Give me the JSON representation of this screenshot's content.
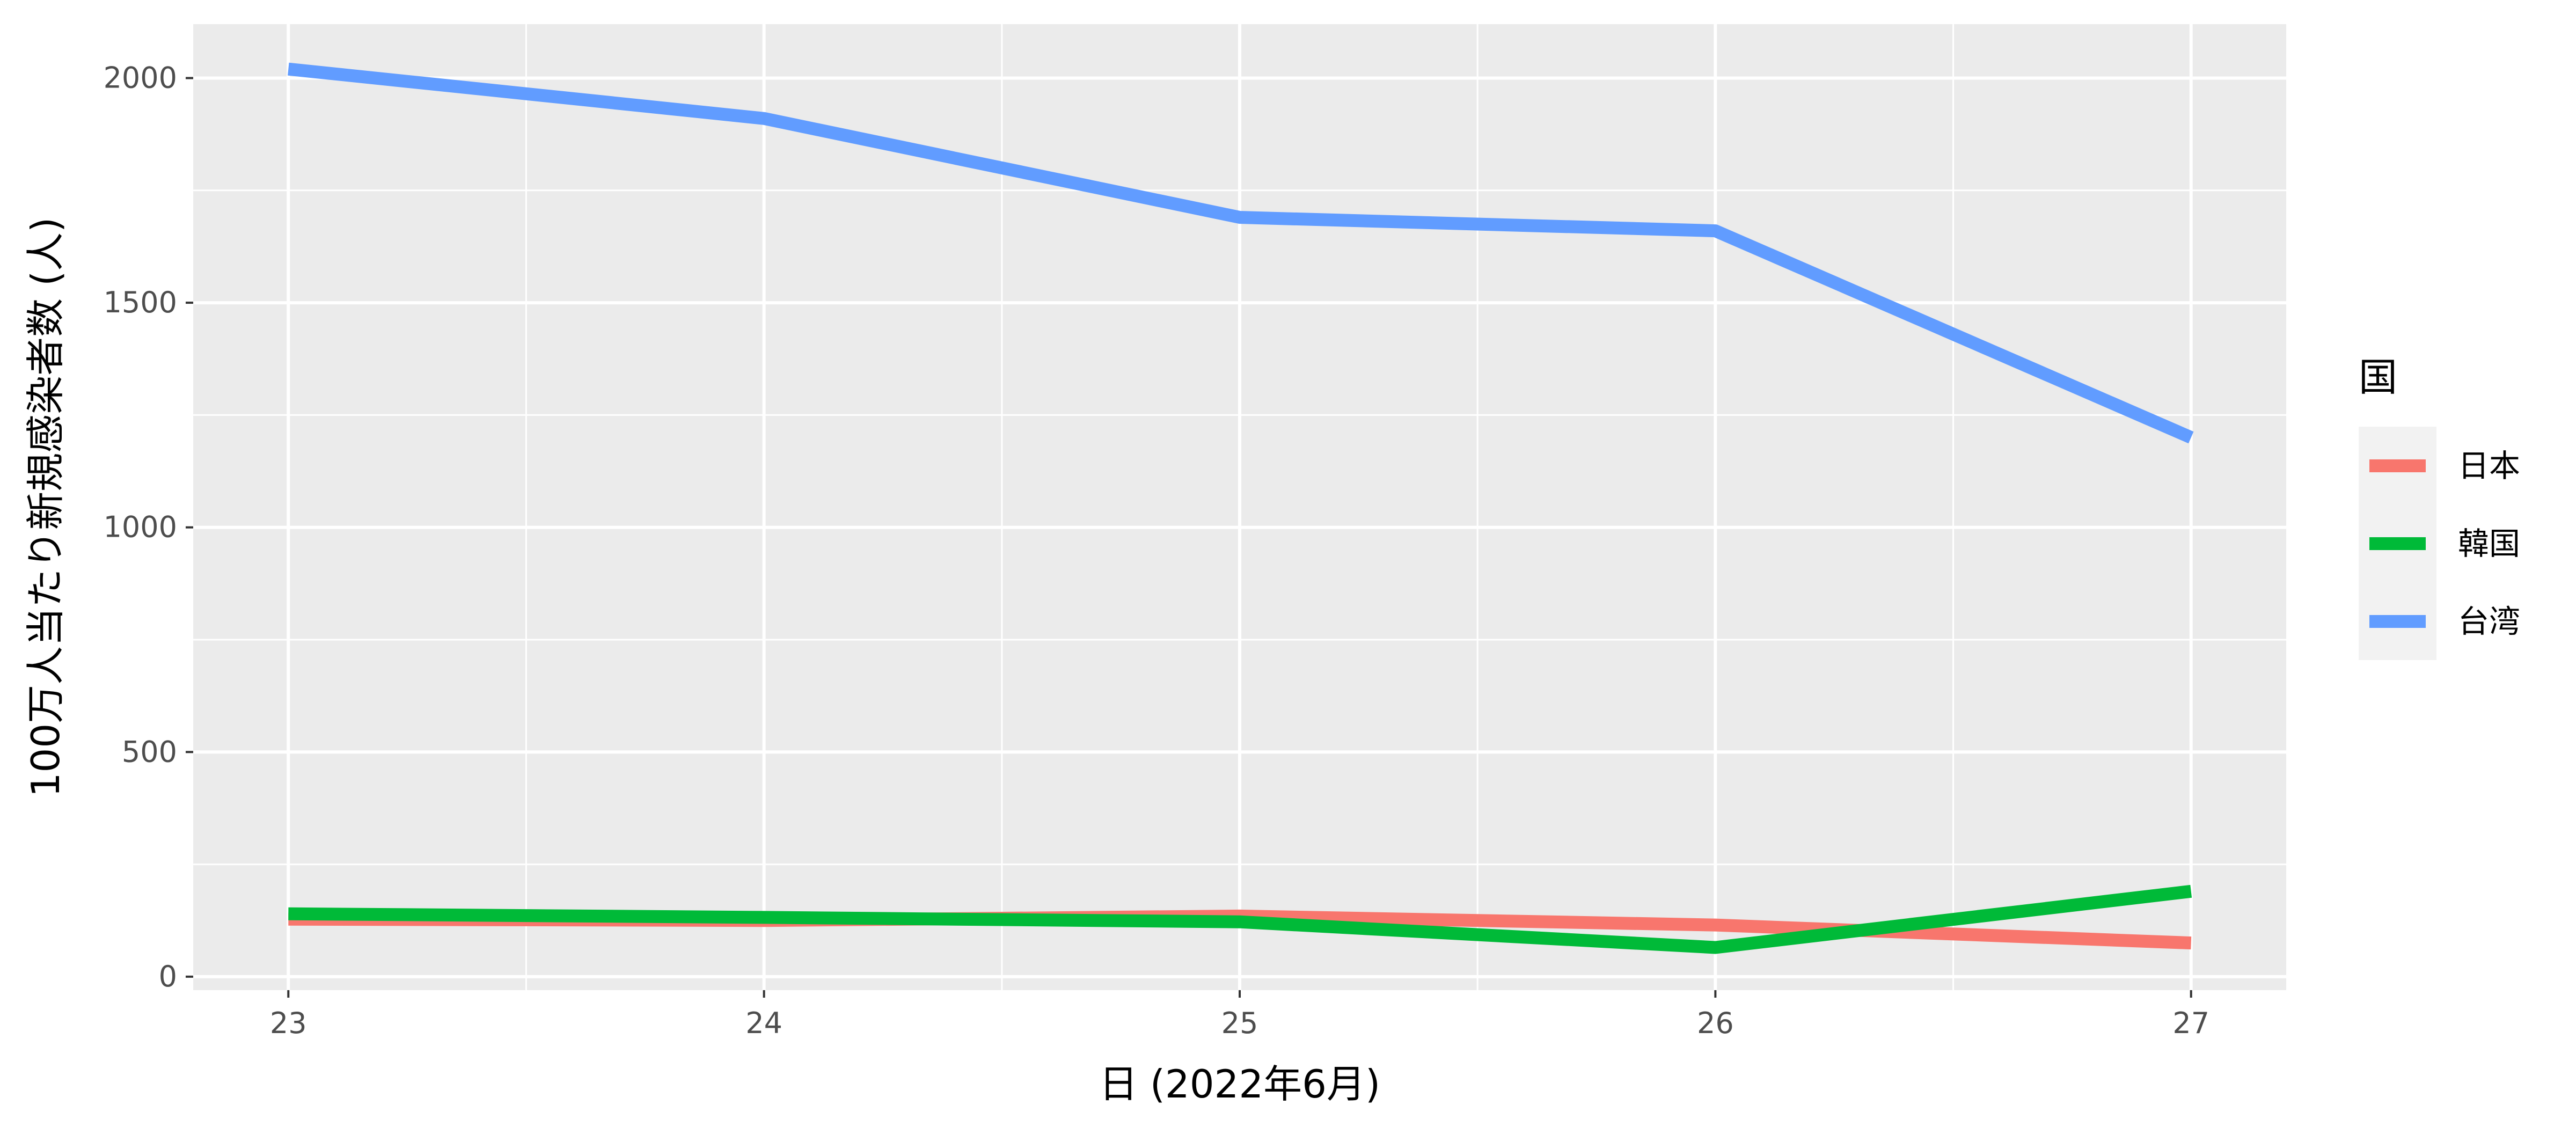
{
  "chart_data": {
    "type": "line",
    "title": "",
    "xlabel": "日 (2022年6月)",
    "ylabel": "100万人当たり新規感染者数 (人)",
    "x": [
      23,
      24,
      25,
      26,
      27
    ],
    "xticks": [
      "23",
      "24",
      "25",
      "26",
      "27"
    ],
    "yticks": [
      "0",
      "500",
      "1000",
      "1500",
      "2000"
    ],
    "ytick_values": [
      0,
      500,
      1000,
      1500,
      2000
    ],
    "xlim": [
      22.8,
      27.2
    ],
    "ylim": [
      -30,
      2120
    ],
    "grid": true,
    "legend": {
      "title": "国",
      "position": "right"
    },
    "series": [
      {
        "name": "日本",
        "color": "#F8766D",
        "values": [
          128,
          125,
          135,
          115,
          75
        ]
      },
      {
        "name": "韓国",
        "color": "#00BA38",
        "values": [
          140,
          132,
          122,
          65,
          190
        ]
      },
      {
        "name": "台湾",
        "color": "#619CFF",
        "values": [
          2020,
          1910,
          1690,
          1660,
          1200
        ]
      }
    ]
  }
}
